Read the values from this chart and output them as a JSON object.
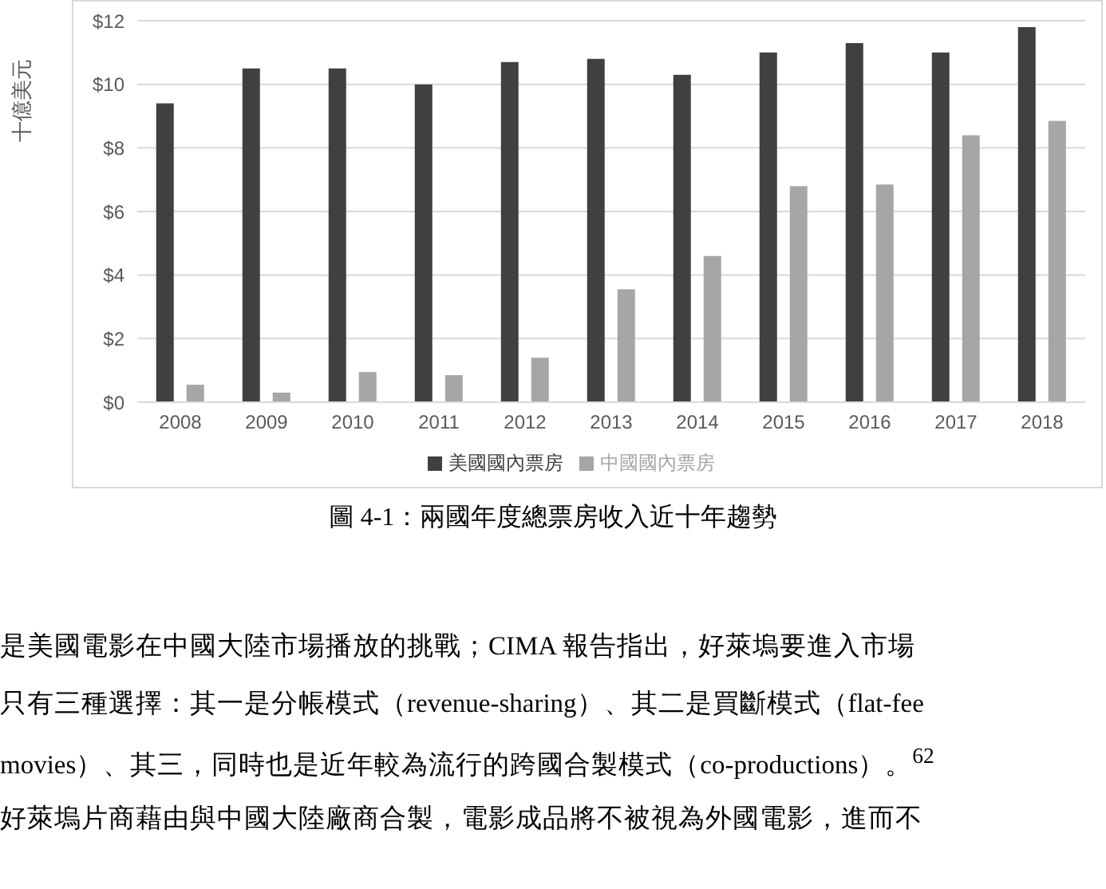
{
  "chart_data": {
    "type": "bar",
    "title": "圖 4-1：兩國年度總票房收入近十年趨勢",
    "ylabel": "十億美元",
    "categories": [
      "2008",
      "2009",
      "2010",
      "2011",
      "2012",
      "2013",
      "2014",
      "2015",
      "2016",
      "2017",
      "2018"
    ],
    "series": [
      {
        "name": "美國國內票房",
        "color": "#404040",
        "values": [
          9.4,
          10.5,
          10.5,
          10.0,
          10.7,
          10.8,
          10.3,
          11.0,
          11.3,
          11.0,
          11.8
        ]
      },
      {
        "name": "中國國內票房",
        "color": "#a6a6a6",
        "values": [
          0.55,
          0.3,
          0.95,
          0.85,
          1.4,
          3.55,
          4.6,
          6.8,
          6.85,
          8.4,
          8.85
        ]
      }
    ],
    "ylim": [
      0,
      12
    ],
    "yticks": [
      {
        "value": 0,
        "label": "$0"
      },
      {
        "value": 2,
        "label": "$2"
      },
      {
        "value": 4,
        "label": "$4"
      },
      {
        "value": 6,
        "label": "$6"
      },
      {
        "value": 8,
        "label": "$8"
      },
      {
        "value": 10,
        "label": "$10"
      },
      {
        "value": 12,
        "label": "$12"
      }
    ],
    "grid": "y",
    "legend": "bottom",
    "annotations": [
      "是美國電影在中國大陸市場播放的挑戰；CIMA 報告指出，好萊塢要進入市場",
      "只有三種選擇：其一是分帳模式（revenue-sharing）、其二是買斷模式（flat-fee",
      "movies）、其三，同時也是近年較為流行的跨國合製模式（co-productions）。$^{62}$",
      "好萊塢片商藉由與中國大陸廠商合製，電影成品將不被視為外國電影，進而不"
    ]
  }
}
